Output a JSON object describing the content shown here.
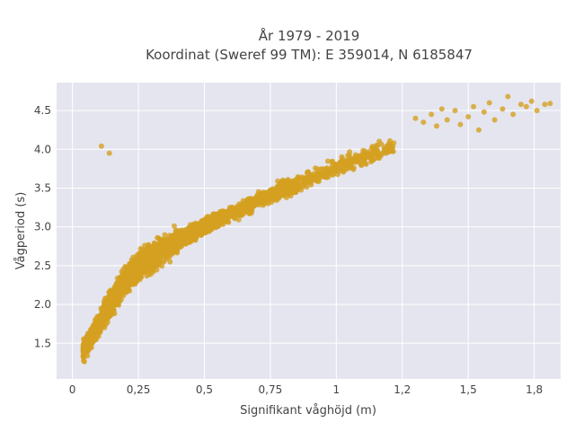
{
  "chart_data": {
    "type": "scatter",
    "title": "År 1979 - 2019",
    "subtitle": "Koordinat (Sweref 99 TM): E 359014, N 6185847",
    "xlabel": "Signifikant våghöjd (m)",
    "ylabel": "Vågperiod (s)",
    "xlim": [
      -0.06,
      1.85
    ],
    "ylim": [
      1.04,
      4.86
    ],
    "x_ticks": [
      0,
      0.25,
      0.5,
      0.75,
      1,
      1.25,
      1.5,
      1.75
    ],
    "x_tick_labels": [
      "0",
      "0,25",
      "0,5",
      "0,75",
      "1",
      "1,2",
      "1,5",
      "1,8"
    ],
    "y_ticks": [
      1.5,
      2.0,
      2.5,
      3.0,
      3.5,
      4.0,
      4.5
    ],
    "y_tick_labels": [
      "1.5",
      "2.0",
      "2.5",
      "3.0",
      "3.5",
      "4.0",
      "4.5"
    ],
    "grid": true,
    "legend": "none",
    "point_color": "#D4A020",
    "plot_background": "#E5E5EF",
    "trend": {
      "x": [
        0.03,
        0.06,
        0.1,
        0.15,
        0.2,
        0.25,
        0.3,
        0.4,
        0.5,
        0.6,
        0.7,
        0.8,
        0.9,
        1.0,
        1.1,
        1.2
      ],
      "y": [
        1.35,
        1.5,
        1.75,
        2.05,
        2.3,
        2.5,
        2.62,
        2.82,
        3.0,
        3.17,
        3.33,
        3.48,
        3.62,
        3.76,
        3.9,
        4.02
      ]
    },
    "outliers": [
      {
        "x": 0.11,
        "y": 4.04
      },
      {
        "x": 0.14,
        "y": 3.95
      },
      {
        "x": 1.3,
        "y": 4.4
      },
      {
        "x": 1.33,
        "y": 4.35
      },
      {
        "x": 1.36,
        "y": 4.45
      },
      {
        "x": 1.38,
        "y": 4.3
      },
      {
        "x": 1.4,
        "y": 4.52
      },
      {
        "x": 1.42,
        "y": 4.38
      },
      {
        "x": 1.45,
        "y": 4.5
      },
      {
        "x": 1.47,
        "y": 4.32
      },
      {
        "x": 1.5,
        "y": 4.42
      },
      {
        "x": 1.52,
        "y": 4.55
      },
      {
        "x": 1.54,
        "y": 4.25
      },
      {
        "x": 1.56,
        "y": 4.48
      },
      {
        "x": 1.58,
        "y": 4.6
      },
      {
        "x": 1.6,
        "y": 4.38
      },
      {
        "x": 1.63,
        "y": 4.52
      },
      {
        "x": 1.65,
        "y": 4.68
      },
      {
        "x": 1.67,
        "y": 4.45
      },
      {
        "x": 1.7,
        "y": 4.58
      },
      {
        "x": 1.72,
        "y": 4.55
      },
      {
        "x": 1.74,
        "y": 4.62
      },
      {
        "x": 1.76,
        "y": 4.5
      },
      {
        "x": 1.79,
        "y": 4.58
      },
      {
        "x": 1.81,
        "y": 4.59
      }
    ]
  }
}
